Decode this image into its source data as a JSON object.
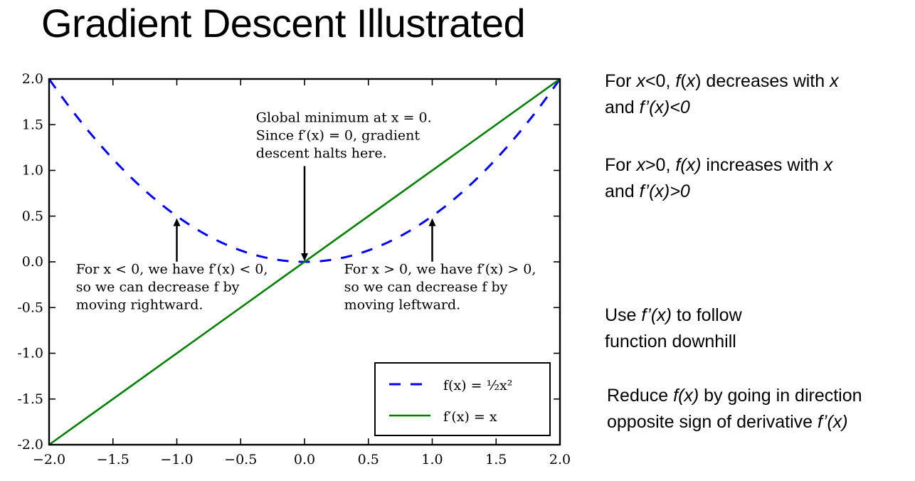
{
  "slide": {
    "title": "Gradient Descent Illustrated",
    "notes": [
      {
        "line1_parts": [
          "For ",
          "x",
          "<0, ",
          "f",
          "(",
          "x",
          ") decreases with ",
          "x"
        ],
        "line2_parts": [
          "and ",
          "f’(x)<0"
        ]
      },
      {
        "line1_parts": [
          "For ",
          "x",
          ">0, ",
          "f(x)",
          " increases with ",
          "x"
        ],
        "line2_parts": [
          "and ",
          "f’(x)>0"
        ]
      },
      {
        "line1_parts": [
          "Use ",
          "f’(x)",
          " to follow"
        ],
        "line2_parts": [
          "function downhill"
        ]
      },
      {
        "line1_parts": [
          "Reduce ",
          "f(x)",
          " by going in direction"
        ],
        "line2_parts": [
          "opposite sign of derivative ",
          "f’(x)"
        ]
      }
    ]
  },
  "chart_data": {
    "type": "line",
    "title": "",
    "xlabel": "",
    "ylabel": "",
    "xlim": [
      -2.0,
      2.0
    ],
    "ylim": [
      -2.0,
      2.0
    ],
    "grid": false,
    "x_ticks": [
      -2.0,
      -1.5,
      -1.0,
      -0.5,
      0.0,
      0.5,
      1.0,
      1.5,
      2.0
    ],
    "x_tick_labels": [
      "−2.0",
      "−1.5",
      "−1.0",
      "−0.5",
      "0.0",
      "0.5",
      "1.0",
      "1.5",
      "2.0"
    ],
    "y_ticks": [
      2.0,
      1.5,
      1.0,
      0.5,
      0.0,
      -0.5,
      -1.0,
      -1.5,
      -2.0
    ],
    "y_tick_labels": [
      "2.0",
      "1.5",
      "1.0",
      "0.5",
      "0.0",
      "-0.5",
      "-1.0",
      "-1.5",
      "-2.0"
    ],
    "series": [
      {
        "name": "f(x) = ½x²",
        "style": "dashed",
        "color": "#0000ff",
        "x": [
          -2.0,
          -1.75,
          -1.5,
          -1.25,
          -1.0,
          -0.75,
          -0.5,
          -0.25,
          0.0,
          0.25,
          0.5,
          0.75,
          1.0,
          1.25,
          1.5,
          1.75,
          2.0
        ],
        "y": [
          2.0,
          1.53125,
          1.125,
          0.78125,
          0.5,
          0.28125,
          0.125,
          0.03125,
          0.0,
          0.03125,
          0.125,
          0.28125,
          0.5,
          0.78125,
          1.125,
          1.53125,
          2.0
        ]
      },
      {
        "name": "f′(x) = x",
        "style": "solid",
        "color": "#008000",
        "x": [
          -2.0,
          2.0
        ],
        "y": [
          -2.0,
          2.0
        ]
      }
    ],
    "legend": {
      "placement": "lower-right",
      "entries": [
        "f(x) = ½x²",
        "f′(x) = x"
      ]
    },
    "annotations": [
      {
        "text_lines": [
          "Global minimum at x = 0.",
          "Since f′(x) = 0, gradient",
          "descent halts here."
        ],
        "point": [
          0.0,
          0.0
        ],
        "text_anchor_data": [
          -0.38,
          1.53
        ]
      },
      {
        "text_lines": [
          "For x < 0, we have f′(x) < 0,",
          "so we can decrease f by",
          "moving rightward."
        ],
        "point": [
          -1.0,
          0.5
        ],
        "text_anchor_data": [
          -1.79,
          -0.13
        ]
      },
      {
        "text_lines": [
          "For x > 0, we have f′(x) > 0,",
          "so we can decrease f by",
          "moving leftward."
        ],
        "point": [
          1.0,
          0.5
        ],
        "text_anchor_data": [
          0.31,
          -0.13
        ]
      }
    ]
  }
}
